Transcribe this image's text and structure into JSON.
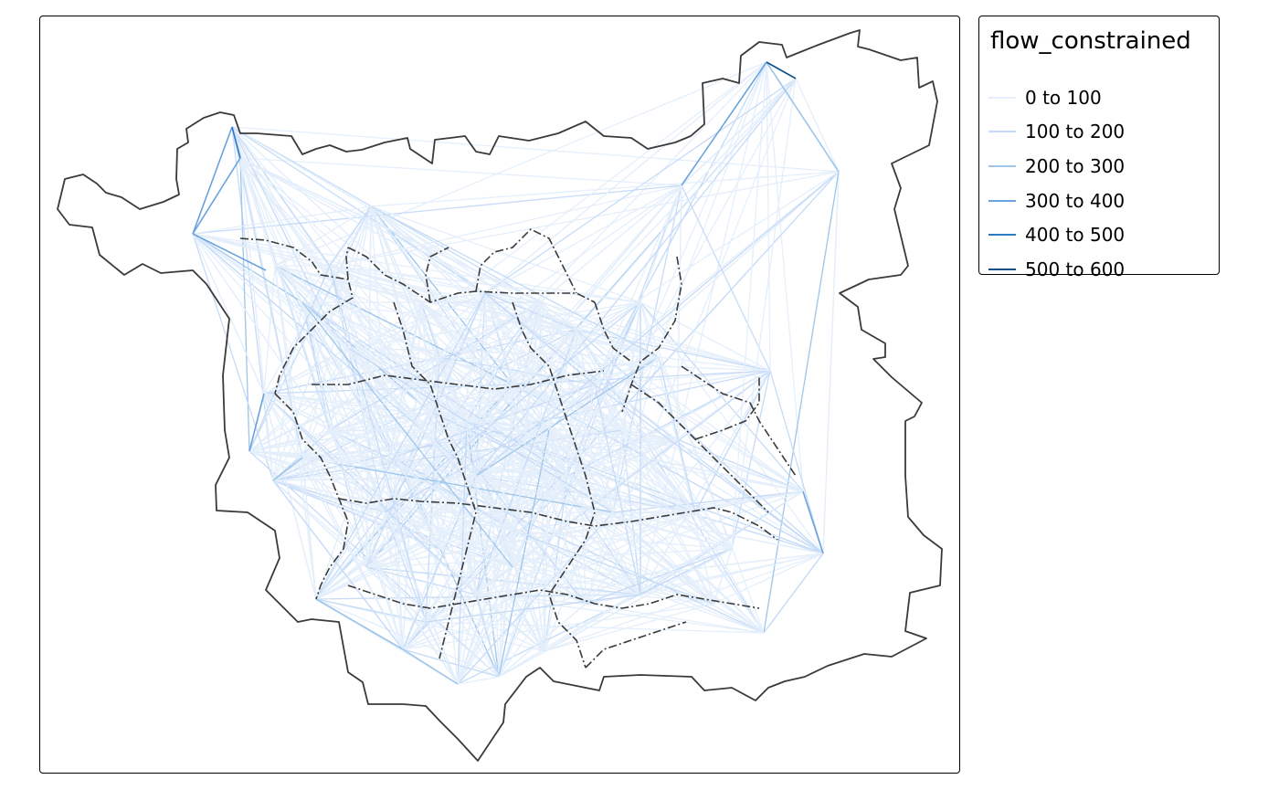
{
  "legend": {
    "title": "flow_constrained",
    "items": [
      {
        "label": "0 to 100",
        "color": "#e4effb"
      },
      {
        "label": "100 to 200",
        "color": "#c6dbf7"
      },
      {
        "label": "200 to 300",
        "color": "#9ec5ea"
      },
      {
        "label": "300 to 400",
        "color": "#6aa3df"
      },
      {
        "label": "400 to 500",
        "color": "#2a7ac4"
      },
      {
        "label": "500 to 600",
        "color": "#0c4f8a"
      }
    ]
  },
  "colors": {
    "boundary": "#3a3a3a",
    "frame": "#000000",
    "background": "#ffffff"
  }
}
